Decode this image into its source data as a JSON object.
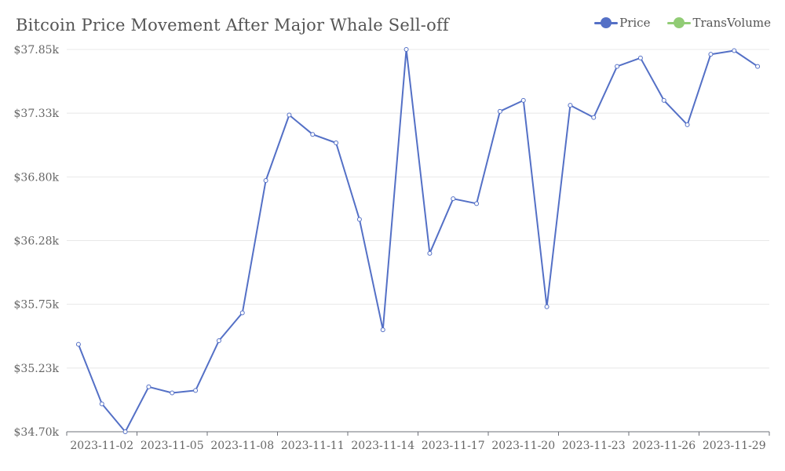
{
  "chart_data": {
    "type": "line",
    "title": "Bitcoin Price Movement After Major Whale Sell-off",
    "x": [
      "2023-11-01",
      "2023-11-02",
      "2023-11-03",
      "2023-11-04",
      "2023-11-05",
      "2023-11-06",
      "2023-11-07",
      "2023-11-08",
      "2023-11-09",
      "2023-11-10",
      "2023-11-11",
      "2023-11-12",
      "2023-11-13",
      "2023-11-14",
      "2023-11-15",
      "2023-11-16",
      "2023-11-17",
      "2023-11-18",
      "2023-11-19",
      "2023-11-20",
      "2023-11-21",
      "2023-11-22",
      "2023-11-23",
      "2023-11-24",
      "2023-11-25",
      "2023-11-26",
      "2023-11-27",
      "2023-11-28",
      "2023-11-29",
      "2023-11-30"
    ],
    "x_tick_labels": [
      "2023-11-02",
      "2023-11-05",
      "2023-11-08",
      "2023-11-11",
      "2023-11-14",
      "2023-11-17",
      "2023-11-20",
      "2023-11-23",
      "2023-11-26",
      "2023-11-29"
    ],
    "y_tick_labels": [
      "$34.70k",
      "$35.23k",
      "$35.75k",
      "$36.28k",
      "$36.80k",
      "$37.33k",
      "$37.85k"
    ],
    "ylim": [
      34700,
      37850
    ],
    "series": [
      {
        "name": "Price",
        "color": "#5470c6",
        "values": [
          35420,
          34930,
          34700,
          35070,
          35020,
          35040,
          35450,
          35680,
          36770,
          37310,
          37150,
          37080,
          36450,
          35540,
          37850,
          36170,
          36620,
          36580,
          37340,
          37430,
          35730,
          37390,
          37290,
          37710,
          37780,
          37430,
          37230,
          37810,
          37840,
          37710
        ]
      }
    ],
    "legend": [
      {
        "label": "Price",
        "color": "#5470c6"
      },
      {
        "label": "TransVolume",
        "color": "#91cc75"
      }
    ],
    "legend_position": "top-right",
    "grid": true
  }
}
